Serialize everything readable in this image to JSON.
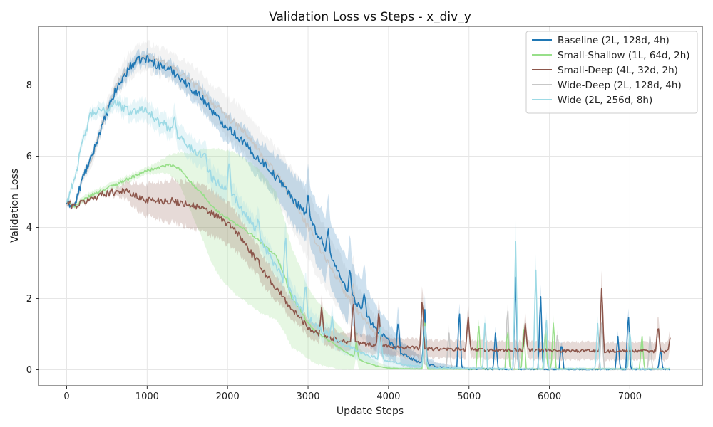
{
  "chart_data": {
    "type": "line",
    "title": "Validation Loss vs Steps - x_div_y",
    "xlabel": "Update Steps",
    "ylabel": "Validation Loss",
    "xlim": [
      -350,
      7900
    ],
    "ylim": [
      -0.45,
      9.65
    ],
    "xticks": [
      0,
      1000,
      2000,
      3000,
      4000,
      5000,
      6000,
      7000
    ],
    "yticks": [
      0,
      2,
      4,
      6,
      8
    ],
    "grid": true,
    "legend_position": "top-right",
    "series": [
      {
        "name": "Wide-Deep (2L, 128d, 4h)",
        "color": "#c7c7c7",
        "band_alpha": 0.22,
        "x": [
          0,
          100,
          200,
          300,
          400,
          500,
          600,
          700,
          800,
          900,
          1000,
          1100,
          1200,
          1300,
          1400,
          1500,
          1600,
          1700,
          1800,
          1900,
          2000,
          2100,
          2200,
          2300,
          2400,
          2500,
          2600,
          2700,
          2800,
          2900,
          3000,
          3100,
          3200,
          3300,
          3400,
          3500,
          3600,
          3700,
          3800,
          3900,
          4000,
          4200,
          4400,
          4600,
          4800,
          5000,
          5500,
          6000,
          6500,
          7000,
          7500
        ],
        "y": [
          4.7,
          4.6,
          5.4,
          5.9,
          6.6,
          7.3,
          7.9,
          8.3,
          8.6,
          8.75,
          8.8,
          8.7,
          8.6,
          8.5,
          8.35,
          8.2,
          8.0,
          7.8,
          7.5,
          7.3,
          7.1,
          6.9,
          6.7,
          6.4,
          6.1,
          5.8,
          5.5,
          5.2,
          4.8,
          4.4,
          4.0,
          3.6,
          3.2,
          2.8,
          2.4,
          2.0,
          1.7,
          1.4,
          1.1,
          0.85,
          0.65,
          0.35,
          0.18,
          0.08,
          0.04,
          0.02,
          0.01,
          0.01,
          0.01,
          0.01,
          0.01
        ],
        "band": [
          0.05,
          0.05,
          0.15,
          0.2,
          0.2,
          0.25,
          0.3,
          0.35,
          0.4,
          0.4,
          0.4,
          0.4,
          0.4,
          0.4,
          0.4,
          0.45,
          0.45,
          0.5,
          0.5,
          0.55,
          0.55,
          0.6,
          0.6,
          0.6,
          0.65,
          0.7,
          0.75,
          0.8,
          0.85,
          0.9,
          0.9,
          0.9,
          0.85,
          0.8,
          0.8,
          0.75,
          0.7,
          0.6,
          0.5,
          0.45,
          0.4,
          0.3,
          0.2,
          0.12,
          0.08,
          0.05,
          0.03,
          0.03,
          0.03,
          0.03,
          0.03
        ],
        "noise": 0.1,
        "spikes": [
          [
            3380,
            2.6
          ],
          [
            3560,
            2.5
          ],
          [
            4420,
            1.6
          ],
          [
            4750,
            1.1
          ],
          [
            5200,
            1.3
          ],
          [
            5480,
            1.9
          ],
          [
            5600,
            1.0
          ],
          [
            6100,
            1.1
          ],
          [
            6650,
            1.4
          ],
          [
            7250,
            1.0
          ]
        ]
      },
      {
        "name": "Baseline (2L, 128d, 4h)",
        "color": "#1f77b4",
        "band_alpha": 0.22,
        "x": [
          0,
          100,
          200,
          300,
          400,
          500,
          600,
          700,
          800,
          900,
          1000,
          1100,
          1200,
          1300,
          1400,
          1500,
          1600,
          1700,
          1800,
          1900,
          2000,
          2100,
          2200,
          2300,
          2400,
          2500,
          2600,
          2700,
          2800,
          2900,
          3000,
          3100,
          3200,
          3300,
          3400,
          3500,
          3600,
          3700,
          3800,
          3900,
          4000,
          4100,
          4200,
          4400,
          4600,
          4800,
          5000,
          5500,
          6000,
          6500,
          7000,
          7500
        ],
        "y": [
          4.7,
          4.6,
          5.4,
          5.9,
          6.6,
          7.2,
          7.8,
          8.2,
          8.55,
          8.7,
          8.75,
          8.6,
          8.5,
          8.4,
          8.25,
          8.0,
          7.8,
          7.6,
          7.3,
          7.0,
          6.85,
          6.6,
          6.4,
          6.1,
          5.9,
          5.7,
          5.4,
          5.2,
          4.8,
          4.6,
          4.3,
          3.9,
          3.5,
          3.1,
          2.6,
          2.2,
          1.9,
          1.6,
          1.3,
          1.0,
          0.8,
          0.55,
          0.4,
          0.2,
          0.09,
          0.04,
          0.02,
          0.01,
          0.01,
          0.01,
          0.01,
          0.01
        ],
        "band": [
          0.05,
          0.05,
          0.1,
          0.1,
          0.1,
          0.15,
          0.15,
          0.2,
          0.2,
          0.2,
          0.2,
          0.2,
          0.2,
          0.25,
          0.25,
          0.3,
          0.3,
          0.35,
          0.35,
          0.4,
          0.4,
          0.4,
          0.45,
          0.5,
          0.5,
          0.55,
          0.6,
          0.65,
          0.7,
          0.75,
          0.8,
          0.85,
          0.9,
          0.9,
          0.9,
          0.9,
          0.85,
          0.8,
          0.7,
          0.6,
          0.5,
          0.4,
          0.3,
          0.2,
          0.12,
          0.08,
          0.05,
          0.03,
          0.03,
          0.03,
          0.03,
          0.03
        ],
        "noise": 0.12,
        "spikes": [
          [
            3000,
            4.9
          ],
          [
            3250,
            4.0
          ],
          [
            3520,
            2.9
          ],
          [
            3700,
            2.2
          ],
          [
            4120,
            1.4
          ],
          [
            4450,
            1.8
          ],
          [
            4880,
            1.8
          ],
          [
            5330,
            1.1
          ],
          [
            5580,
            2.6
          ],
          [
            5890,
            2.2
          ],
          [
            6150,
            0.8
          ],
          [
            6850,
            1.0
          ],
          [
            6980,
            1.7
          ],
          [
            7380,
            0.6
          ]
        ]
      },
      {
        "name": "Small-Shallow (1L, 64d, 2h)",
        "color": "#98df8a",
        "band_alpha": 0.24,
        "x": [
          0,
          100,
          200,
          300,
          400,
          500,
          600,
          700,
          800,
          900,
          1000,
          1100,
          1200,
          1300,
          1400,
          1500,
          1600,
          1700,
          1800,
          1900,
          2000,
          2100,
          2200,
          2300,
          2400,
          2500,
          2600,
          2700,
          2800,
          2900,
          3000,
          3100,
          3200,
          3300,
          3400,
          3500,
          3600,
          3700,
          3800,
          3900,
          4000,
          4200,
          4400,
          4600,
          5000,
          5500,
          6000,
          6500,
          7000,
          7500
        ],
        "y": [
          4.7,
          4.6,
          4.75,
          4.9,
          5.0,
          5.1,
          5.2,
          5.3,
          5.4,
          5.5,
          5.6,
          5.65,
          5.72,
          5.75,
          5.65,
          5.4,
          5.1,
          4.9,
          4.6,
          4.4,
          4.25,
          4.1,
          3.95,
          3.8,
          3.6,
          3.4,
          3.2,
          2.7,
          2.0,
          1.7,
          1.3,
          1.05,
          0.9,
          0.75,
          0.6,
          0.45,
          0.33,
          0.22,
          0.14,
          0.08,
          0.05,
          0.03,
          0.02,
          0.02,
          0.02,
          0.02,
          0.02,
          0.02,
          0.02,
          0.02
        ],
        "band": [
          0.05,
          0.05,
          0.1,
          0.1,
          0.1,
          0.1,
          0.1,
          0.1,
          0.1,
          0.1,
          0.1,
          0.15,
          0.2,
          0.3,
          0.45,
          0.7,
          1.0,
          1.3,
          1.6,
          1.8,
          1.9,
          2.0,
          2.0,
          2.0,
          2.0,
          1.9,
          1.8,
          1.6,
          1.4,
          1.2,
          1.0,
          0.9,
          0.8,
          0.7,
          0.6,
          0.45,
          0.35,
          0.25,
          0.15,
          0.1,
          0.06,
          0.04,
          0.03,
          0.03,
          0.03,
          0.03,
          0.03,
          0.03,
          0.03,
          0.03
        ],
        "noise": 0.04,
        "spikes": [
          [
            3600,
            0.8
          ],
          [
            4450,
            1.4
          ],
          [
            5120,
            1.4
          ],
          [
            5480,
            1.2
          ],
          [
            5680,
            1.3
          ],
          [
            5950,
            1.2
          ],
          [
            6050,
            1.4
          ],
          [
            7000,
            1.1
          ],
          [
            7150,
            1.0
          ]
        ]
      },
      {
        "name": "Small-Deep (4L, 32d, 2h)",
        "color": "#8c564b",
        "band_alpha": 0.22,
        "x": [
          0,
          100,
          200,
          300,
          400,
          500,
          600,
          700,
          800,
          900,
          1000,
          1100,
          1200,
          1300,
          1400,
          1500,
          1600,
          1700,
          1800,
          1900,
          2000,
          2100,
          2200,
          2300,
          2400,
          2500,
          2600,
          2700,
          2800,
          2900,
          3000,
          3100,
          3200,
          3300,
          3400,
          3500,
          3600,
          3800,
          4000,
          4200,
          4400,
          4600,
          4800,
          5000,
          5500,
          6000,
          6500,
          7000,
          7500
        ],
        "y": [
          4.7,
          4.6,
          4.7,
          4.8,
          4.9,
          4.97,
          5.0,
          5.05,
          4.95,
          4.82,
          4.78,
          4.76,
          4.75,
          4.74,
          4.7,
          4.66,
          4.6,
          4.5,
          4.4,
          4.25,
          4.1,
          3.9,
          3.6,
          3.25,
          2.95,
          2.6,
          2.3,
          2.0,
          1.7,
          1.45,
          1.2,
          1.05,
          0.95,
          0.88,
          0.82,
          0.78,
          0.74,
          0.7,
          0.66,
          0.63,
          0.6,
          0.58,
          0.57,
          0.56,
          0.55,
          0.54,
          0.53,
          0.52,
          0.52
        ],
        "band": [
          0.05,
          0.05,
          0.05,
          0.05,
          0.05,
          0.05,
          0.1,
          0.2,
          0.3,
          0.4,
          0.45,
          0.5,
          0.55,
          0.6,
          0.6,
          0.65,
          0.65,
          0.65,
          0.65,
          0.6,
          0.6,
          0.55,
          0.5,
          0.45,
          0.4,
          0.4,
          0.35,
          0.3,
          0.3,
          0.25,
          0.25,
          0.25,
          0.25,
          0.25,
          0.25,
          0.25,
          0.25,
          0.25,
          0.25,
          0.25,
          0.25,
          0.25,
          0.25,
          0.25,
          0.25,
          0.25,
          0.25,
          0.25,
          0.25
        ],
        "noise": 0.1,
        "spikes": [
          [
            3170,
            1.8
          ],
          [
            3560,
            2.0
          ],
          [
            3880,
            1.7
          ],
          [
            4420,
            2.1
          ],
          [
            4990,
            1.55
          ],
          [
            5700,
            1.3
          ],
          [
            6650,
            2.4
          ],
          [
            7350,
            1.3
          ],
          [
            7500,
            0.9
          ]
        ]
      },
      {
        "name": "Wide (2L, 256d, 8h)",
        "color": "#9edae5",
        "band_alpha": 0.26,
        "x": [
          0,
          100,
          200,
          300,
          400,
          500,
          600,
          700,
          800,
          900,
          1000,
          1100,
          1200,
          1300,
          1400,
          1500,
          1600,
          1700,
          1800,
          1900,
          2000,
          2100,
          2200,
          2300,
          2400,
          2500,
          2600,
          2700,
          2800,
          2900,
          3000,
          3100,
          3200,
          3300,
          3400,
          3500,
          3600,
          3700,
          3800,
          3900,
          4000,
          4200,
          4400,
          4600,
          4800,
          5000,
          5500,
          6000,
          6500,
          7000,
          7500
        ],
        "y": [
          4.7,
          5.4,
          6.4,
          7.2,
          7.25,
          7.3,
          7.55,
          7.35,
          7.25,
          7.3,
          7.35,
          7.0,
          6.9,
          6.75,
          6.55,
          6.3,
          6.1,
          6.05,
          5.4,
          5.2,
          5.15,
          4.8,
          4.4,
          4.15,
          3.7,
          3.3,
          2.9,
          2.5,
          2.1,
          1.75,
          1.5,
          1.25,
          1.05,
          0.9,
          0.75,
          0.65,
          0.55,
          0.45,
          0.38,
          0.3,
          0.25,
          0.15,
          0.1,
          0.06,
          0.04,
          0.03,
          0.02,
          0.02,
          0.02,
          0.02,
          0.02
        ],
        "band": [
          0.05,
          0.1,
          0.15,
          0.15,
          0.2,
          0.2,
          0.2,
          0.25,
          0.25,
          0.3,
          0.3,
          0.3,
          0.3,
          0.3,
          0.35,
          0.35,
          0.35,
          0.35,
          0.35,
          0.35,
          0.35,
          0.3,
          0.3,
          0.3,
          0.3,
          0.3,
          0.3,
          0.3,
          0.3,
          0.3,
          0.3,
          0.3,
          0.25,
          0.25,
          0.25,
          0.25,
          0.25,
          0.2,
          0.2,
          0.2,
          0.2,
          0.15,
          0.1,
          0.08,
          0.06,
          0.05,
          0.04,
          0.04,
          0.04,
          0.04,
          0.04
        ],
        "noise": 0.12,
        "spikes": [
          [
            1340,
            7.2
          ],
          [
            1720,
            6.1
          ],
          [
            2020,
            5.9
          ],
          [
            2380,
            4.3
          ],
          [
            2720,
            3.9
          ],
          [
            2970,
            2.5
          ],
          [
            3300,
            1.5
          ],
          [
            3900,
            1.2
          ],
          [
            4450,
            1.3
          ],
          [
            5200,
            1.5
          ],
          [
            5580,
            3.6
          ],
          [
            5830,
            3.0
          ],
          [
            5960,
            1.6
          ],
          [
            6600,
            1.3
          ],
          [
            7000,
            1.2
          ]
        ]
      }
    ]
  }
}
